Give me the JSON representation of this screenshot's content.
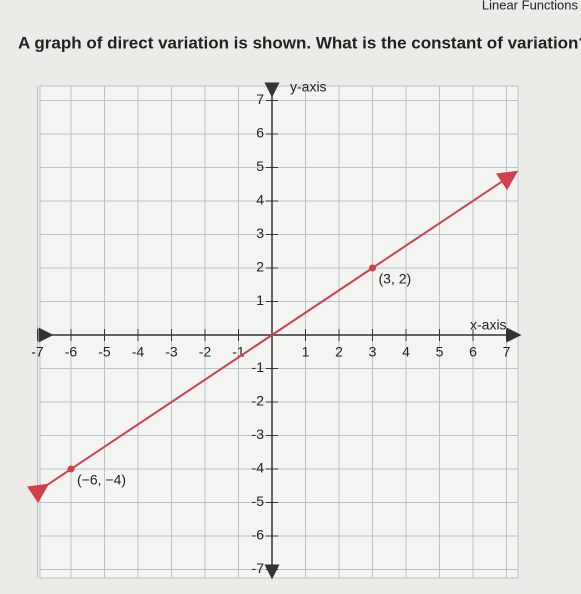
{
  "header": "Linear Functions",
  "question": "A graph of direct variation is shown. What is the constant of variation?",
  "chart_data": {
    "type": "line",
    "x_label": "x-axis",
    "y_label": "y-axis",
    "x": [
      -7,
      7
    ],
    "series": [
      {
        "name": null,
        "color": "#d2404c",
        "values": [
          -4.67,
          4.67
        ]
      }
    ],
    "points": [
      {
        "x": -6,
        "y": -4,
        "label": "(−6, −4)"
      },
      {
        "x": 3,
        "y": 2,
        "label": "(3, 2)"
      }
    ],
    "xlim": [
      -7,
      7
    ],
    "ylim": [
      -7,
      7
    ],
    "xticks": [
      -7,
      -6,
      -5,
      -4,
      -3,
      -2,
      -1,
      1,
      2,
      3,
      4,
      5,
      6,
      7
    ],
    "yticks": [
      -7,
      -6,
      -5,
      -4,
      -3,
      -2,
      -1,
      1,
      2,
      3,
      4,
      5,
      6,
      7
    ],
    "grid": true
  }
}
